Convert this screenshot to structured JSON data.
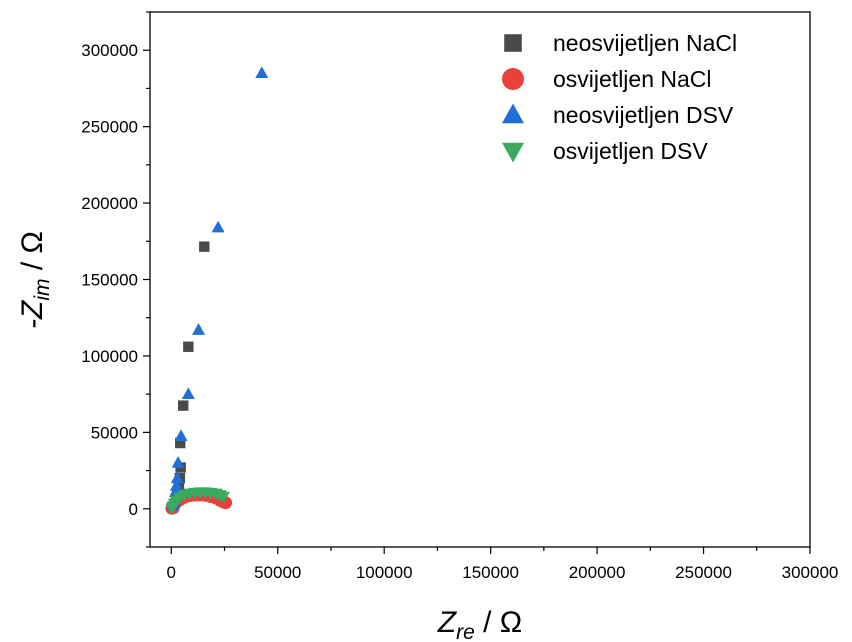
{
  "chart_data": {
    "type": "scatter",
    "title": "",
    "xlabel": {
      "main": "Z",
      "sub": "re",
      "unit": " / Ω"
    },
    "ylabel": {
      "prefix": "-Z",
      "sub": "im",
      "unit": " / Ω"
    },
    "xlim": [
      -10000,
      300000
    ],
    "ylim": [
      -25000,
      325000
    ],
    "x_ticks": [
      0,
      50000,
      100000,
      150000,
      200000,
      250000,
      300000
    ],
    "y_ticks": [
      0,
      50000,
      100000,
      150000,
      200000,
      250000,
      300000
    ],
    "grid": false,
    "legend_position": "top-right",
    "series": [
      {
        "name": "neosvijetljen NaCl",
        "marker": "square",
        "color": "#4a4a4a",
        "points": [
          [
            500,
            500
          ],
          [
            1000,
            1500
          ],
          [
            1500,
            3000
          ],
          [
            2200,
            5000
          ],
          [
            2800,
            8000
          ],
          [
            3200,
            11000
          ],
          [
            3600,
            15000
          ],
          [
            4000,
            20000
          ],
          [
            4400,
            27000
          ],
          [
            4200,
            43000
          ],
          [
            5600,
            67500
          ],
          [
            8000,
            106000
          ],
          [
            15500,
            171500
          ]
        ]
      },
      {
        "name": "osvijetljen NaCl",
        "marker": "circle",
        "color": "#e8403a",
        "points": [
          [
            300,
            300
          ],
          [
            800,
            1500
          ],
          [
            1500,
            3000
          ],
          [
            2500,
            4500
          ],
          [
            4000,
            6000
          ],
          [
            6000,
            7500
          ],
          [
            8500,
            8500
          ],
          [
            11000,
            9000
          ],
          [
            13500,
            9000
          ],
          [
            16000,
            8800
          ],
          [
            18500,
            8000
          ],
          [
            21000,
            7000
          ],
          [
            23000,
            5500
          ],
          [
            24500,
            4500
          ],
          [
            25500,
            4000
          ]
        ]
      },
      {
        "name": "neosvijetljen DSV",
        "marker": "triangle-up",
        "color": "#1f6fd6",
        "points": [
          [
            800,
            2000
          ],
          [
            1200,
            4000
          ],
          [
            1600,
            7000
          ],
          [
            2000,
            11000
          ],
          [
            2400,
            15000
          ],
          [
            2800,
            20000
          ],
          [
            3200,
            30000
          ],
          [
            4600,
            47500
          ],
          [
            8000,
            75000
          ],
          [
            12800,
            117000
          ],
          [
            22000,
            184000
          ],
          [
            42500,
            285000
          ]
        ]
      },
      {
        "name": "osvijetljen DSV",
        "marker": "triangle-down",
        "color": "#3aaa60",
        "points": [
          [
            300,
            200
          ],
          [
            800,
            1500
          ],
          [
            1500,
            3500
          ],
          [
            2500,
            5500
          ],
          [
            4000,
            7500
          ],
          [
            6000,
            9000
          ],
          [
            8500,
            10000
          ],
          [
            11000,
            10500
          ],
          [
            13500,
            10800
          ],
          [
            16000,
            10800
          ],
          [
            18500,
            10500
          ],
          [
            21000,
            10000
          ],
          [
            23000,
            9000
          ],
          [
            24500,
            8000
          ]
        ]
      }
    ]
  }
}
